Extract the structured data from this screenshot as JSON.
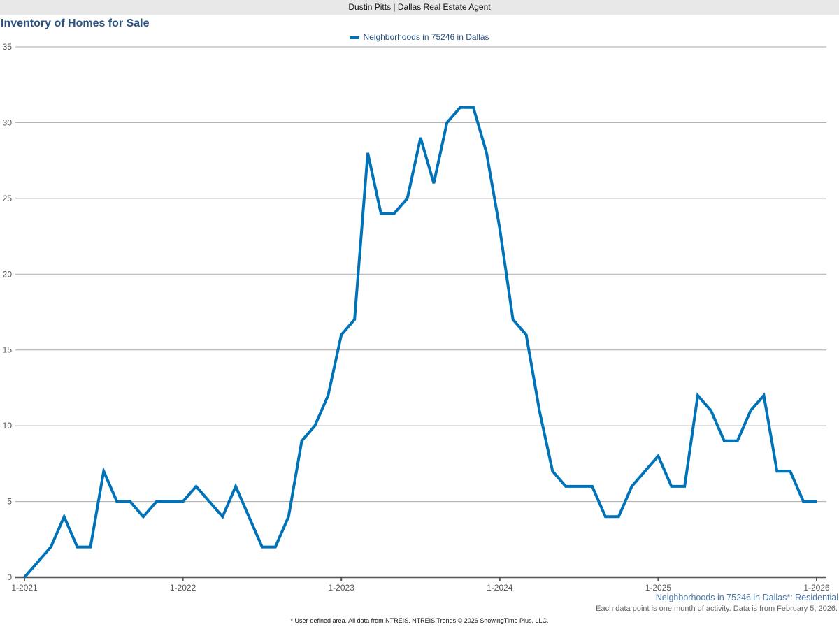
{
  "header": {
    "bar_text": "Dustin Pitts | Dallas Real Estate Agent"
  },
  "chart_data": {
    "type": "line",
    "title": "Inventory of Homes for Sale",
    "legend_position": "top-center",
    "grid": true,
    "ylim": [
      0,
      35
    ],
    "y_ticks": [
      "0",
      "5",
      "10",
      "15",
      "20",
      "25",
      "30",
      "35"
    ],
    "x_tick_labels": [
      "1-2021",
      "1-2022",
      "1-2023",
      "1-2024",
      "1-2025",
      "1-2026"
    ],
    "x_start": "1-2021",
    "x_end": "1-2026",
    "series": [
      {
        "name": "Neighborhoods in 75246 in Dallas",
        "color": "#0072b8",
        "values": [
          0,
          1,
          2,
          4,
          2,
          2,
          7,
          5,
          5,
          4,
          5,
          5,
          5,
          6,
          5,
          4,
          6,
          4,
          2,
          2,
          4,
          9,
          10,
          12,
          16,
          17,
          28,
          24,
          24,
          25,
          29,
          26,
          30,
          31,
          31,
          28,
          23,
          17,
          16,
          11,
          7,
          6,
          6,
          6,
          4,
          4,
          6,
          7,
          8,
          6,
          6,
          12,
          11,
          9,
          9,
          11,
          12,
          7,
          7,
          5,
          5
        ]
      }
    ],
    "subtitle": "Neighborhoods in 75246 in Dallas*: Residential",
    "note": "Each data point is one month of activity. Data is from February 5, 2026.",
    "footer": "* User-defined area. All data from NTREIS. NTREIS Trends © 2026 ShowingTime Plus, LLC."
  }
}
